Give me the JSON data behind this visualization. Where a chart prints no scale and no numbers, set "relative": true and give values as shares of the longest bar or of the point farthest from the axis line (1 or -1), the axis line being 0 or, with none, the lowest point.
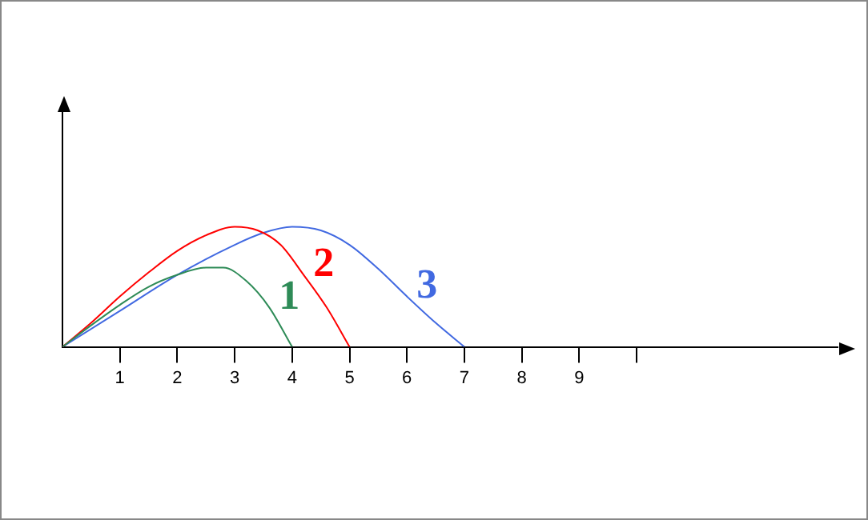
{
  "chart_data": {
    "type": "line",
    "relative": true,
    "xlim": [
      0,
      13.5
    ],
    "xticks": [
      1,
      2,
      3,
      4,
      5,
      6,
      7,
      8,
      9,
      {
        "value": 10,
        "label": null
      }
    ],
    "grid": false,
    "legend": false,
    "marker": "none",
    "line_style": "solid",
    "tick_labels": "x",
    "series": [
      {
        "name": "1",
        "color": "#2e8b57",
        "x": [
          0,
          0.5,
          1,
          1.5,
          2,
          2.5,
          2.8,
          3.2,
          3.6,
          4
        ],
        "values": [
          0,
          0.18,
          0.35,
          0.5,
          0.6,
          0.66,
          0.66,
          0.55,
          0.33,
          0
        ]
      },
      {
        "name": "2",
        "color": "#ff0000",
        "x": [
          0,
          0.5,
          1,
          1.5,
          2,
          2.5,
          3,
          3.4,
          3.8,
          4.2,
          4.6,
          5
        ],
        "values": [
          0,
          0.2,
          0.42,
          0.62,
          0.8,
          0.93,
          1,
          0.97,
          0.85,
          0.6,
          0.33,
          0
        ]
      },
      {
        "name": "3",
        "color": "#4169e1",
        "x": [
          0,
          1,
          2,
          3,
          3.5,
          4,
          4.5,
          5,
          5.5,
          6,
          6.5,
          7
        ],
        "values": [
          0,
          0.3,
          0.6,
          0.85,
          0.95,
          1,
          0.97,
          0.85,
          0.65,
          0.42,
          0.2,
          0
        ]
      }
    ]
  }
}
